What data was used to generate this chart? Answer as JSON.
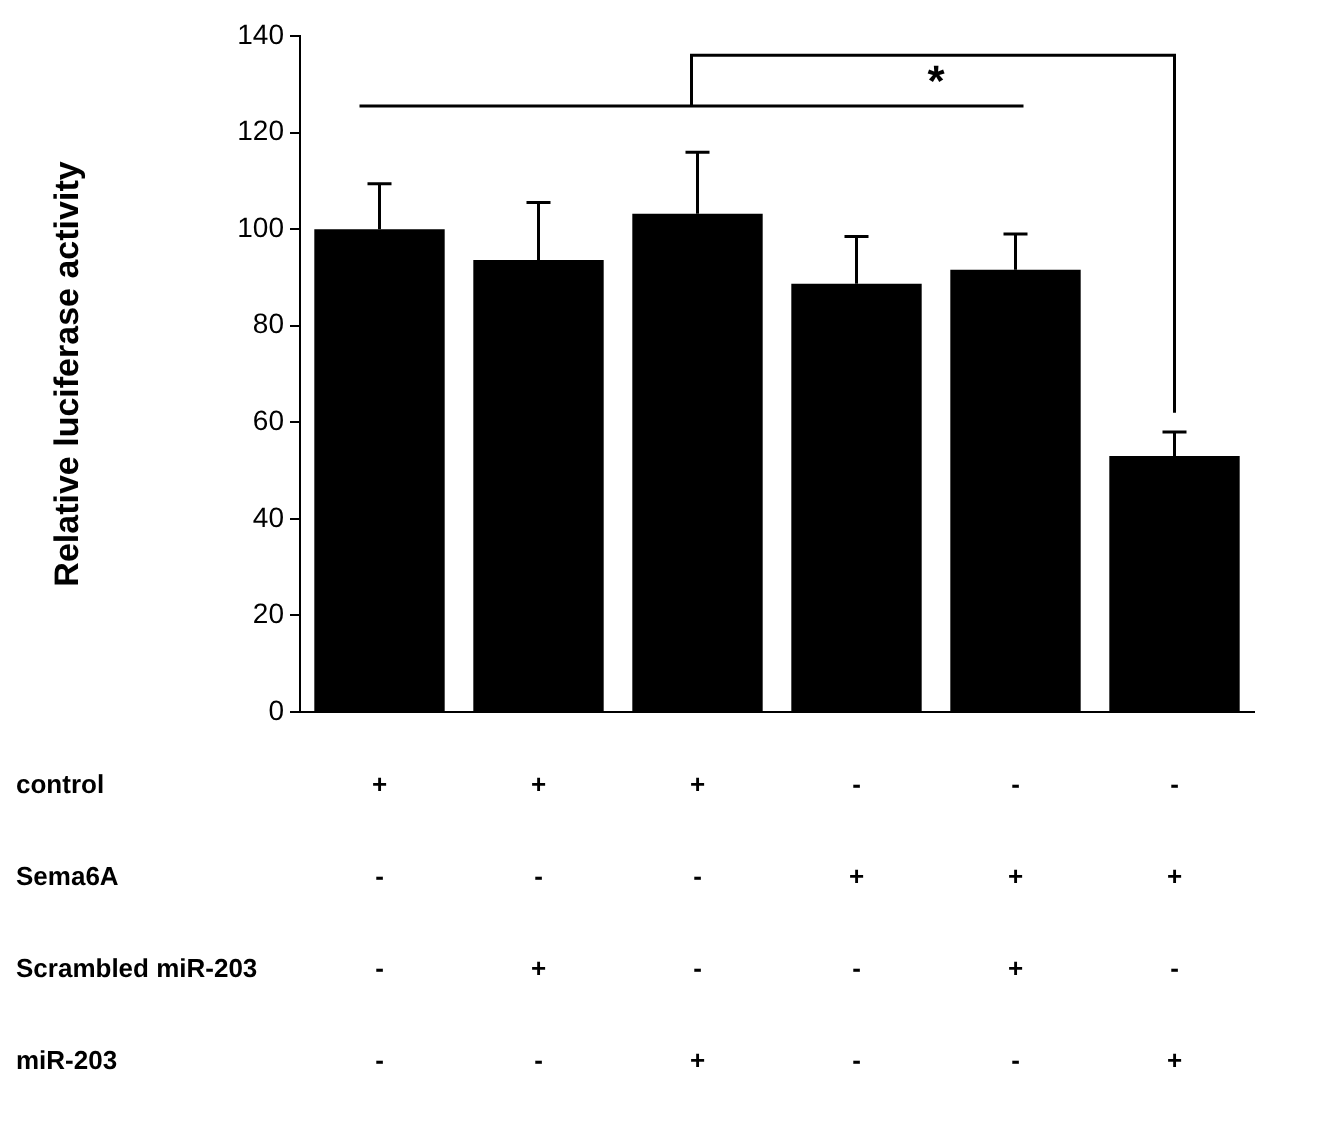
{
  "chart_data": {
    "type": "bar",
    "ylabel": "Relative luciferase activity",
    "categories": [
      "+\n-\n-\n-",
      "+\n-\n+\n-",
      "+\n-\n-\n+",
      "-\n+\n-\n-",
      "-\n+\n+\n-",
      "-\n+\n-\n+"
    ],
    "values": [
      100,
      93.6,
      103.2,
      88.7,
      91.6,
      53
    ],
    "errors": [
      [
        100,
        109.4
      ],
      [
        93.6,
        105.5
      ],
      [
        103.2,
        115.9
      ],
      [
        88.7,
        98.5
      ],
      [
        91.6,
        99
      ],
      [
        53,
        58
      ]
    ],
    "color": "#000000",
    "ylim": [
      0,
      140
    ],
    "yticks": [
      0,
      20,
      40,
      60,
      80,
      100,
      120,
      140
    ],
    "grid": false,
    "legend": false,
    "annotations": [
      "control",
      "Sema6A",
      "Scrambled miR-203",
      "miR-203",
      "*"
    ]
  }
}
